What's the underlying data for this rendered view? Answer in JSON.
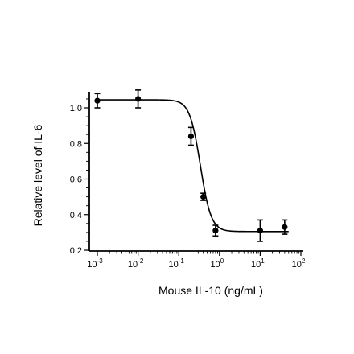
{
  "chart_data": {
    "type": "scatter",
    "title": "",
    "xlabel": "Mouse IL-10 (ng/mL)",
    "ylabel": "Relative level of IL-6",
    "x_scale": "log",
    "xlim": [
      0.001,
      100
    ],
    "ylim": [
      0.2,
      1.1
    ],
    "x_ticks": [
      {
        "value": 0.001,
        "base": "10",
        "exp": "-3"
      },
      {
        "value": 0.01,
        "base": "10",
        "exp": "-2"
      },
      {
        "value": 0.1,
        "base": "10",
        "exp": "-1"
      },
      {
        "value": 1,
        "base": "10",
        "exp": "0"
      },
      {
        "value": 10,
        "base": "10",
        "exp": "1"
      },
      {
        "value": 100,
        "base": "10",
        "exp": "2"
      }
    ],
    "y_ticks": [
      {
        "value": 0.2,
        "label": "0.2"
      },
      {
        "value": 0.4,
        "label": "0.4"
      },
      {
        "value": 0.6,
        "label": "0.6"
      },
      {
        "value": 0.8,
        "label": "0.8"
      },
      {
        "value": 1.0,
        "label": "1.0"
      }
    ],
    "grid": false,
    "legend": "none",
    "series": [
      {
        "points": [
          {
            "x": 0.001,
            "y": 1.04,
            "err": 0.04
          },
          {
            "x": 0.01,
            "y": 1.05,
            "err": 0.05
          },
          {
            "x": 0.2,
            "y": 0.84,
            "err": 0.05
          },
          {
            "x": 0.4,
            "y": 0.5,
            "err": 0.02
          },
          {
            "x": 0.8,
            "y": 0.31,
            "err": 0.03
          },
          {
            "x": 10,
            "y": 0.31,
            "err": 0.06
          },
          {
            "x": 40,
            "y": 0.33,
            "err": 0.04
          }
        ],
        "fit": {
          "model": "4PL",
          "top": 1.045,
          "bottom": 0.305,
          "ec50": 0.34,
          "hill": 3.3
        }
      }
    ]
  }
}
